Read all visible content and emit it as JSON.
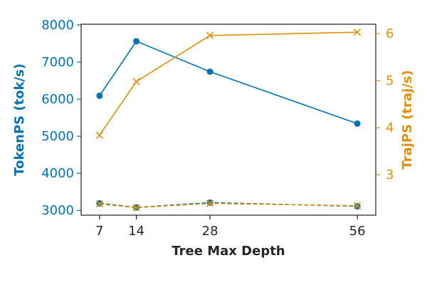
{
  "chart_data": {
    "type": "line",
    "xlabel": "Tree Max Depth",
    "ylabel_left": "TokenPS (tok/s)",
    "ylabel_right": "TrajPS (traj/s)",
    "colors": {
      "left": "#0173b2",
      "right": "#de8f05",
      "axis": "#262626"
    },
    "x": [
      7,
      14,
      28,
      56
    ],
    "x_ticks": [
      7,
      14,
      28,
      56
    ],
    "xlim": [
      3.5,
      59.5
    ],
    "ylim_left": [
      2870,
      8020
    ],
    "yticks_left": [
      3000,
      4000,
      5000,
      6000,
      7000,
      8000
    ],
    "ylim_right": [
      2.14,
      6.2
    ],
    "yticks_right": [
      3,
      4,
      5,
      6
    ],
    "grid": false,
    "series": [
      {
        "axis": "left",
        "style": "solid",
        "marker": "circle",
        "values": [
          6090,
          7560,
          6740,
          5340
        ]
      },
      {
        "axis": "right",
        "style": "solid",
        "marker": "x",
        "values": [
          3.84,
          4.98,
          5.96,
          6.03
        ]
      },
      {
        "axis": "left",
        "style": "dashed",
        "marker": "circle",
        "values": [
          3190,
          3080,
          3210,
          3110
        ]
      },
      {
        "axis": "right",
        "style": "dashed",
        "marker": "x",
        "values": [
          2.38,
          2.3,
          2.39,
          2.34
        ]
      }
    ]
  }
}
